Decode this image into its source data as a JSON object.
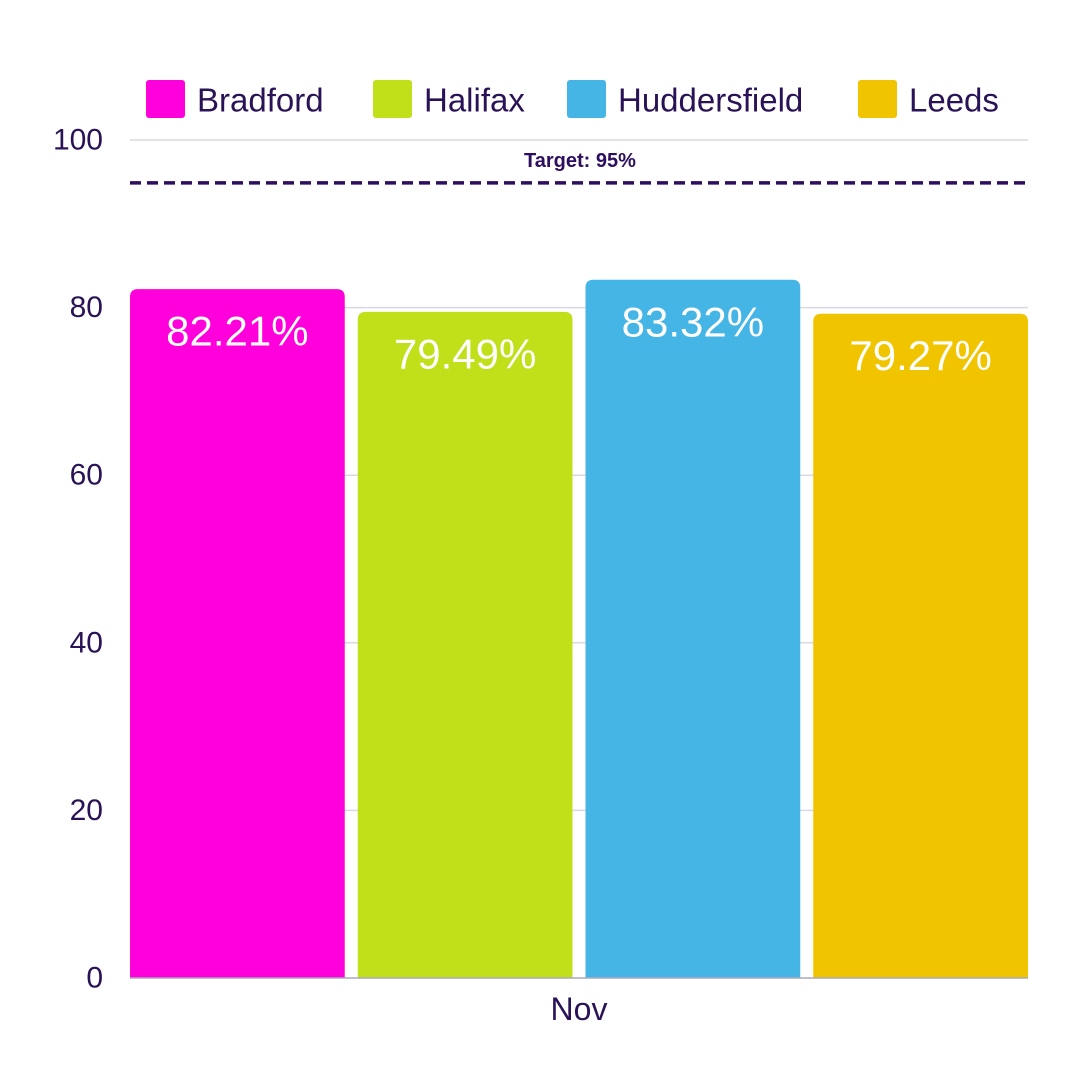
{
  "chart_data": {
    "type": "bar",
    "categories": [
      "Nov"
    ],
    "series": [
      {
        "name": "Bradford",
        "values": [
          82.21
        ],
        "label": "82.21%",
        "color": "#ff00dc"
      },
      {
        "name": "Halifax",
        "values": [
          79.49
        ],
        "label": "79.49%",
        "color": "#c1e01a"
      },
      {
        "name": "Huddersfield",
        "values": [
          83.32
        ],
        "label": "83.32%",
        "color": "#45b5e5"
      },
      {
        "name": "Leeds",
        "values": [
          79.27
        ],
        "label": "79.27%",
        "color": "#f0c500"
      }
    ],
    "ylim": [
      0,
      100
    ],
    "yticks": [
      0,
      20,
      40,
      60,
      80,
      100
    ],
    "ytick_labels": [
      "0",
      "20",
      "40",
      "60",
      "80",
      "100"
    ],
    "target": {
      "value": 95,
      "label": "Target: 95%",
      "color": "#2e0e5e"
    },
    "legend_position": "top",
    "grid": true,
    "title": "",
    "xlabel": "",
    "ylabel": "",
    "text_color": "#2a1256",
    "grid_color": "#d8d8e4"
  }
}
